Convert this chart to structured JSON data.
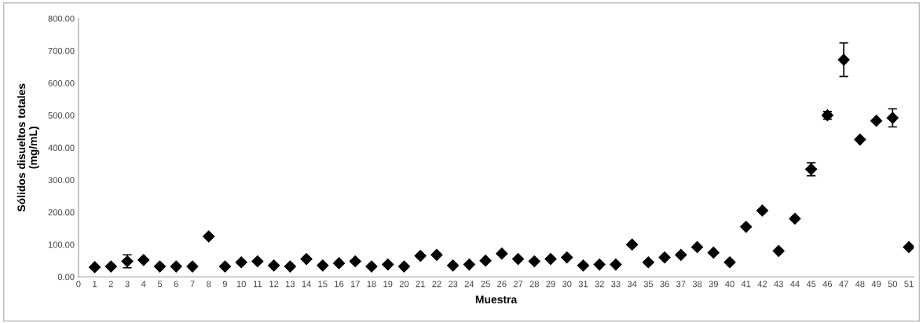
{
  "chart_data": {
    "type": "scatter",
    "xlabel": "Muestra",
    "ylabel": "Sólidos disueltos totales\n(mg/mL)",
    "x": [
      1,
      2,
      3,
      4,
      5,
      6,
      7,
      8,
      9,
      10,
      11,
      12,
      13,
      14,
      15,
      16,
      17,
      18,
      19,
      20,
      21,
      22,
      23,
      24,
      25,
      26,
      27,
      28,
      29,
      30,
      31,
      32,
      33,
      34,
      35,
      36,
      37,
      38,
      39,
      40,
      41,
      42,
      43,
      44,
      45,
      46,
      47,
      48,
      49,
      50,
      51
    ],
    "series": [
      {
        "color": "#000000",
        "values": [
          30,
          32,
          48,
          52,
          32,
          32,
          32,
          125,
          32,
          45,
          48,
          35,
          32,
          55,
          35,
          42,
          48,
          32,
          38,
          32,
          65,
          68,
          35,
          38,
          50,
          72,
          55,
          48,
          55,
          60,
          35,
          38,
          38,
          100,
          45,
          60,
          68,
          92,
          75,
          45,
          155,
          205,
          80,
          180,
          333,
          500,
          672,
          425,
          483,
          492,
          92
        ],
        "errors": [
          null,
          null,
          20,
          null,
          null,
          null,
          null,
          null,
          null,
          null,
          null,
          null,
          null,
          null,
          null,
          null,
          null,
          null,
          null,
          null,
          null,
          null,
          null,
          null,
          null,
          null,
          null,
          null,
          null,
          null,
          null,
          null,
          null,
          null,
          null,
          null,
          null,
          null,
          null,
          null,
          null,
          null,
          null,
          null,
          20,
          12,
          52,
          null,
          null,
          28,
          null
        ]
      }
    ],
    "marker": "diamond",
    "grid": false,
    "legend": false,
    "xlim": [
      0,
      51.3
    ],
    "xticks": [
      0,
      1,
      2,
      3,
      4,
      5,
      6,
      7,
      8,
      9,
      10,
      11,
      12,
      13,
      14,
      15,
      16,
      17,
      18,
      19,
      20,
      21,
      22,
      23,
      24,
      25,
      26,
      27,
      28,
      29,
      30,
      31,
      32,
      33,
      34,
      35,
      36,
      37,
      38,
      39,
      40,
      41,
      42,
      43,
      44,
      45,
      46,
      47,
      48,
      49,
      50,
      51
    ],
    "ylim": [
      0,
      800
    ],
    "yticks": [
      {
        "value": 0,
        "label": "0.00"
      },
      {
        "value": 100,
        "label": "100.00"
      },
      {
        "value": 200,
        "label": "200.00"
      },
      {
        "value": 300,
        "label": "300.00"
      },
      {
        "value": 400,
        "label": "400.00"
      },
      {
        "value": 500,
        "label": "500.00"
      },
      {
        "value": 600,
        "label": "600.00"
      },
      {
        "value": 700,
        "label": "700.00"
      },
      {
        "value": 800,
        "label": "800.00"
      }
    ]
  }
}
